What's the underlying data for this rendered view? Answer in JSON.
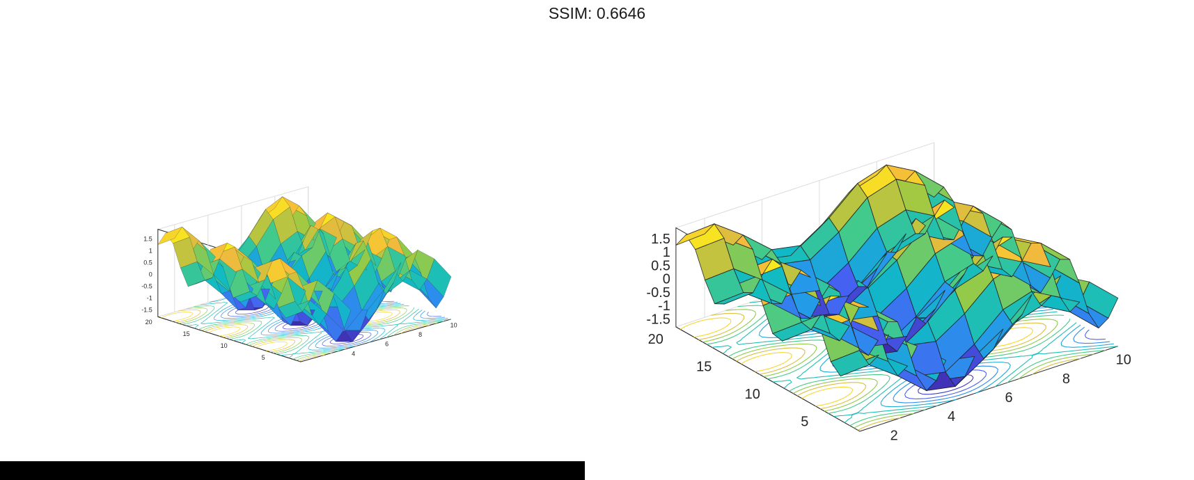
{
  "header": {
    "title": "SSIM: 0.6646"
  },
  "chart_data": [
    {
      "type": "surface",
      "title": "",
      "xlabel": "",
      "ylabel": "",
      "zlabel": "",
      "function": "sin(x) + cos(y)",
      "xlim": [
        1,
        10
      ],
      "ylim": [
        1,
        20
      ],
      "zlim": [
        -1.8,
        1.9
      ],
      "x_ticks": [
        "4",
        "6",
        "8",
        "10"
      ],
      "y_ticks": [
        "5",
        "10",
        "15",
        "20"
      ],
      "z_ticks": [
        "-1.5",
        "-1",
        "-0.5",
        "0",
        "0.5",
        "1",
        "1.5"
      ],
      "shading": "interp",
      "colormap": "parula",
      "contour_floor": true,
      "grid": true
    },
    {
      "type": "surface",
      "title": "",
      "xlabel": "",
      "ylabel": "",
      "zlabel": "",
      "function": "sin(x) + cos(y)",
      "xlim": [
        1,
        10
      ],
      "ylim": [
        1,
        20
      ],
      "zlim": [
        -1.8,
        1.9
      ],
      "x_ticks": [
        "2",
        "4",
        "6",
        "8",
        "10"
      ],
      "y_ticks": [
        "5",
        "10",
        "15",
        "20"
      ],
      "z_ticks": [
        "-1.5",
        "-1",
        "-0.5",
        "0",
        "0.5",
        "1",
        "1.5"
      ],
      "shading": "faceted",
      "colormap": "parula",
      "contour_floor": true,
      "grid": true
    }
  ],
  "colors": {
    "background": "#ffffff",
    "text": "#262626",
    "grid": "#dcdcdc",
    "edge": "#1e1e1e"
  }
}
